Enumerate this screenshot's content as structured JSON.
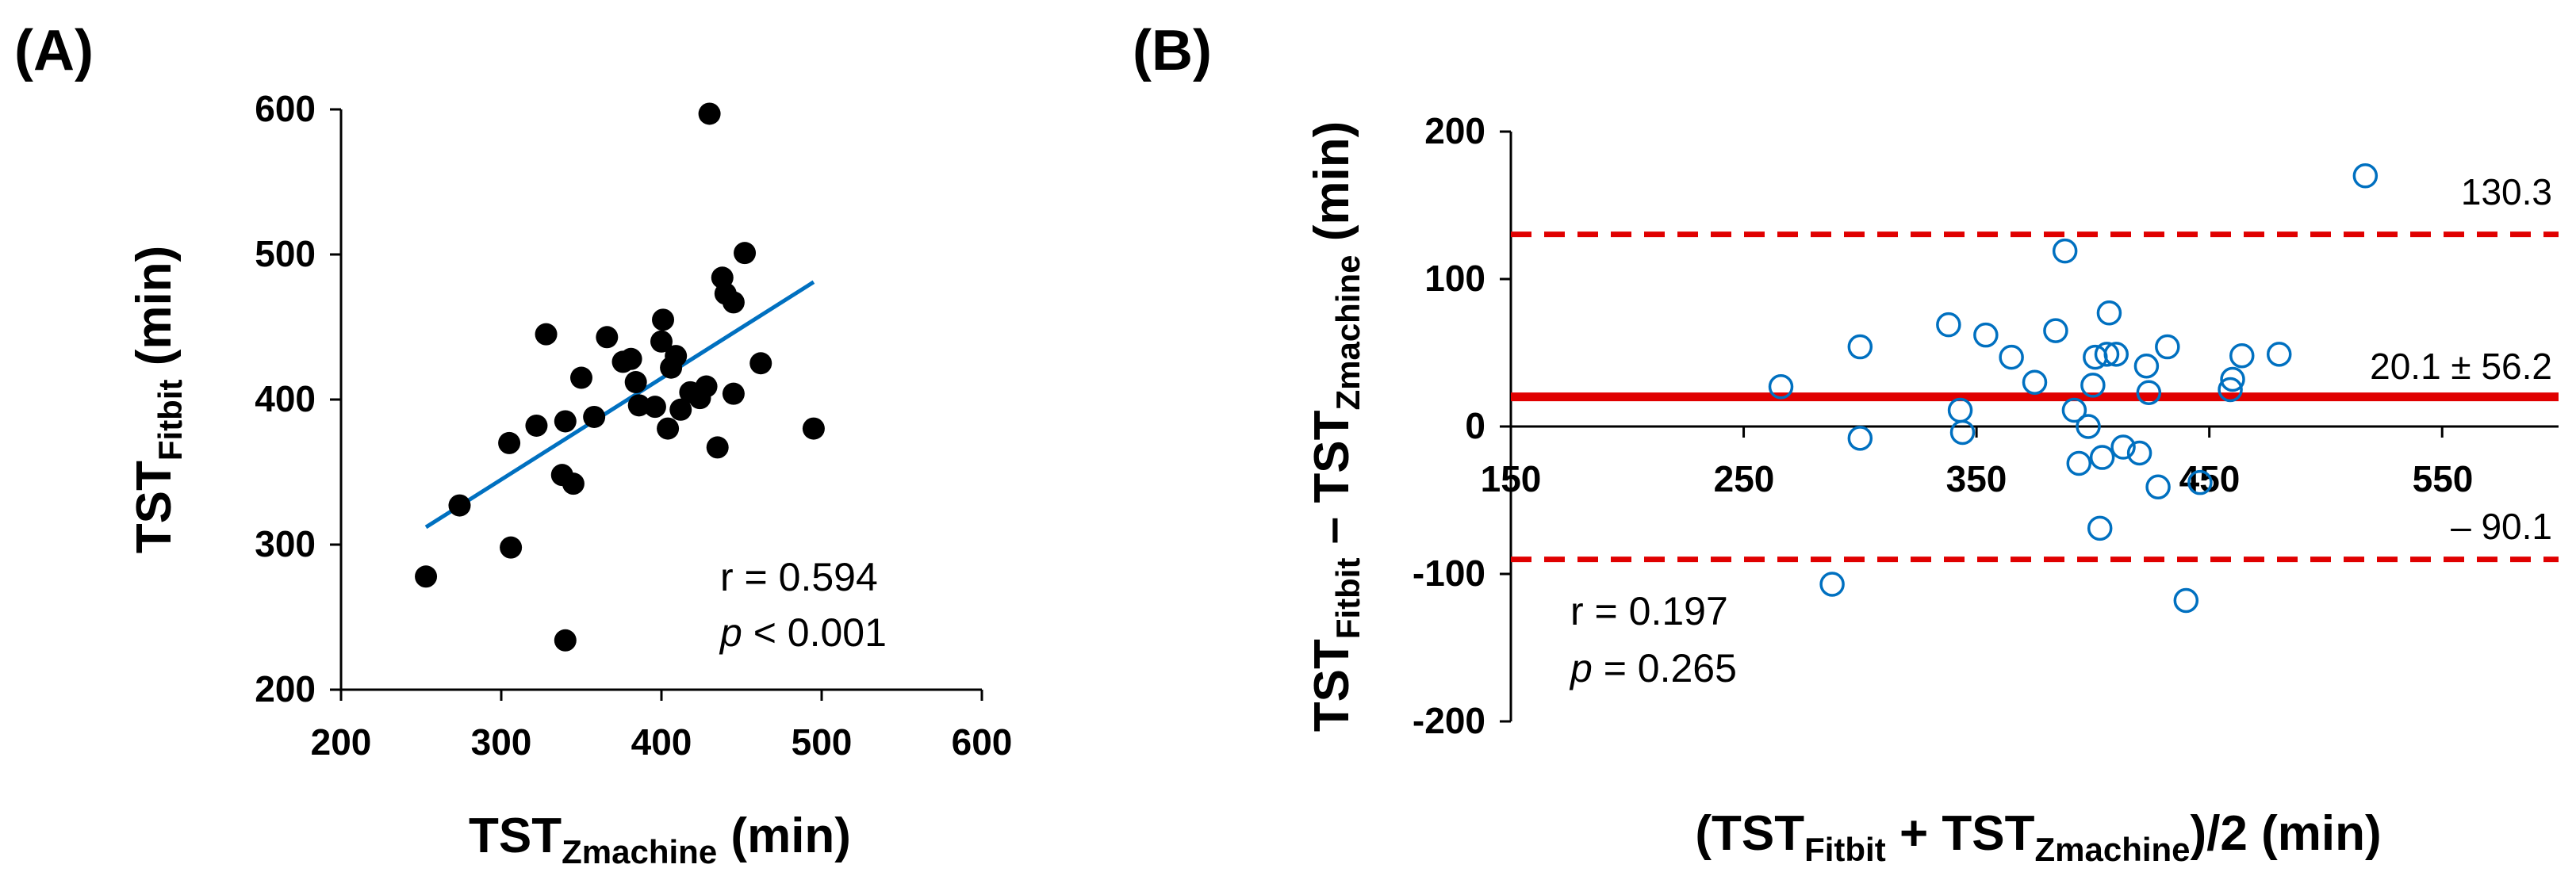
{
  "chart_data": [
    {
      "panel": "(A)",
      "type": "scatter",
      "xlabel": {
        "main": "TST",
        "sub": "Zmachine",
        "unit": " (min)"
      },
      "ylabel": {
        "main": "TST",
        "sub": "Fitbit",
        "unit": " (min)"
      },
      "xlim": [
        200,
        600
      ],
      "ylim": [
        200,
        600
      ],
      "xticks": [
        "200",
        "300",
        "400",
        "500",
        "600"
      ],
      "yticks": [
        "200",
        "300",
        "400",
        "500",
        "600"
      ],
      "marker_color": "#000000",
      "trend_color": "#0070c0",
      "trendline": {
        "x": [
          253,
          495
        ],
        "y": [
          312,
          481
        ]
      },
      "points": [
        [
          253,
          278
        ],
        [
          274,
          327
        ],
        [
          305,
          370
        ],
        [
          306,
          298
        ],
        [
          322,
          382
        ],
        [
          328,
          445
        ],
        [
          338,
          348
        ],
        [
          340,
          385
        ],
        [
          340,
          234
        ],
        [
          345,
          342
        ],
        [
          350,
          415
        ],
        [
          358,
          388
        ],
        [
          366,
          443
        ],
        [
          376,
          426
        ],
        [
          381,
          428
        ],
        [
          384,
          412
        ],
        [
          386,
          396
        ],
        [
          396,
          395
        ],
        [
          400,
          440
        ],
        [
          401,
          455
        ],
        [
          404,
          380
        ],
        [
          406,
          422
        ],
        [
          409,
          430
        ],
        [
          412,
          393
        ],
        [
          418,
          405
        ],
        [
          424,
          401
        ],
        [
          428,
          409
        ],
        [
          430,
          597
        ],
        [
          435,
          367
        ],
        [
          438,
          484
        ],
        [
          440,
          473
        ],
        [
          445,
          404
        ],
        [
          445,
          467
        ],
        [
          452,
          501
        ],
        [
          462,
          425
        ],
        [
          495,
          380
        ]
      ],
      "annotation": {
        "r": "r = 0.594",
        "p_symbol": "p",
        "p_text": " < 0.001"
      }
    },
    {
      "panel": "(B)",
      "type": "scatter",
      "xlabel": {
        "open": "(TST",
        "sub1": "Fitbit",
        "mid": " + TST",
        "sub2": "Zmachine",
        "close": ")/2 (min)"
      },
      "ylabel": {
        "a": "TST",
        "sub1": "Fitbit",
        "b": " – TST",
        "sub2": "Zmachine",
        "c": " (min)"
      },
      "xlim": [
        150,
        600
      ],
      "ylim": [
        -200,
        200
      ],
      "xticks": [
        "150",
        "250",
        "350",
        "450",
        "550"
      ],
      "yticks": [
        "200",
        "100",
        "0",
        "-100",
        "-200"
      ],
      "marker_color": "#0070c0",
      "line_color": "#e00000",
      "mean_line": 20.1,
      "upper_loa": 130.3,
      "lower_loa": -90.1,
      "labels": {
        "upper": "130.3",
        "mean": "20.1 ± 56.2",
        "lower": "– 90.1"
      },
      "points": [
        [
          266,
          27
        ],
        [
          300,
          -8
        ],
        [
          300,
          54
        ],
        [
          288,
          -107
        ],
        [
          338,
          69
        ],
        [
          343,
          11
        ],
        [
          344,
          -4
        ],
        [
          354,
          62
        ],
        [
          365,
          47
        ],
        [
          375,
          30
        ],
        [
          384,
          65
        ],
        [
          388,
          119
        ],
        [
          392,
          11
        ],
        [
          394,
          -25
        ],
        [
          398,
          0
        ],
        [
          400,
          28
        ],
        [
          401,
          47
        ],
        [
          403,
          -69
        ],
        [
          404,
          -21
        ],
        [
          406,
          49
        ],
        [
          407,
          77
        ],
        [
          410,
          49
        ],
        [
          413,
          -14
        ],
        [
          420,
          -18
        ],
        [
          423,
          41
        ],
        [
          424,
          23
        ],
        [
          428,
          -41
        ],
        [
          432,
          54
        ],
        [
          440,
          -118
        ],
        [
          446,
          -38
        ],
        [
          459,
          25
        ],
        [
          460,
          32
        ],
        [
          464,
          48
        ],
        [
          480,
          49
        ],
        [
          517,
          170
        ]
      ],
      "annotation": {
        "r": "r = 0.197",
        "p_symbol": "p",
        "p_text": " = 0.265"
      }
    }
  ]
}
